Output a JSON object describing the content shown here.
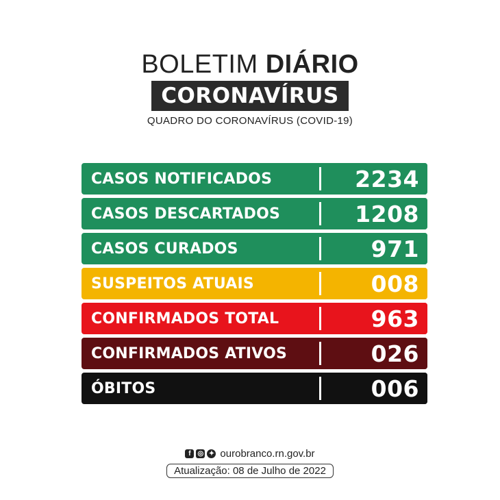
{
  "header": {
    "title_regular": "BOLETIM ",
    "title_bold": "DIÁRIO",
    "title_box": "CORONAVÍRUS",
    "subtitle": "QUADRO DO CORONAVÍRUS (COVID-19)"
  },
  "rows": [
    {
      "label": "CASOS NOTIFICADOS",
      "value": "2234",
      "color": "#1f8f5c",
      "value_color": "#1f8f5c"
    },
    {
      "label": "CASOS DESCARTADOS",
      "value": "1208",
      "color": "#1f8f5c",
      "value_color": "#1f8f5c"
    },
    {
      "label": "CASOS CURADOS",
      "value": "971",
      "color": "#1f8f5c",
      "value_color": "#1f8f5c"
    },
    {
      "label": "SUSPEITOS ATUAIS",
      "value": "008",
      "color": "#f4b400",
      "value_color": "#f4b400"
    },
    {
      "label": "CONFIRMADOS TOTAL",
      "value": "963",
      "color": "#e8141c",
      "value_color": "#e8141c"
    },
    {
      "label": "CONFIRMADOS ATIVOS",
      "value": "026",
      "color": "#5e0e12",
      "value_color": "#5e0e12"
    },
    {
      "label": "ÓBITOS",
      "value": "006",
      "color": "#111111",
      "value_color": "#111111"
    }
  ],
  "footer": {
    "icons": [
      "facebook-icon",
      "instagram-icon",
      "twitter-icon"
    ],
    "website": "ourobranco.rn.gov.br",
    "update": "Atualização: 08 de Julho de 2022"
  }
}
